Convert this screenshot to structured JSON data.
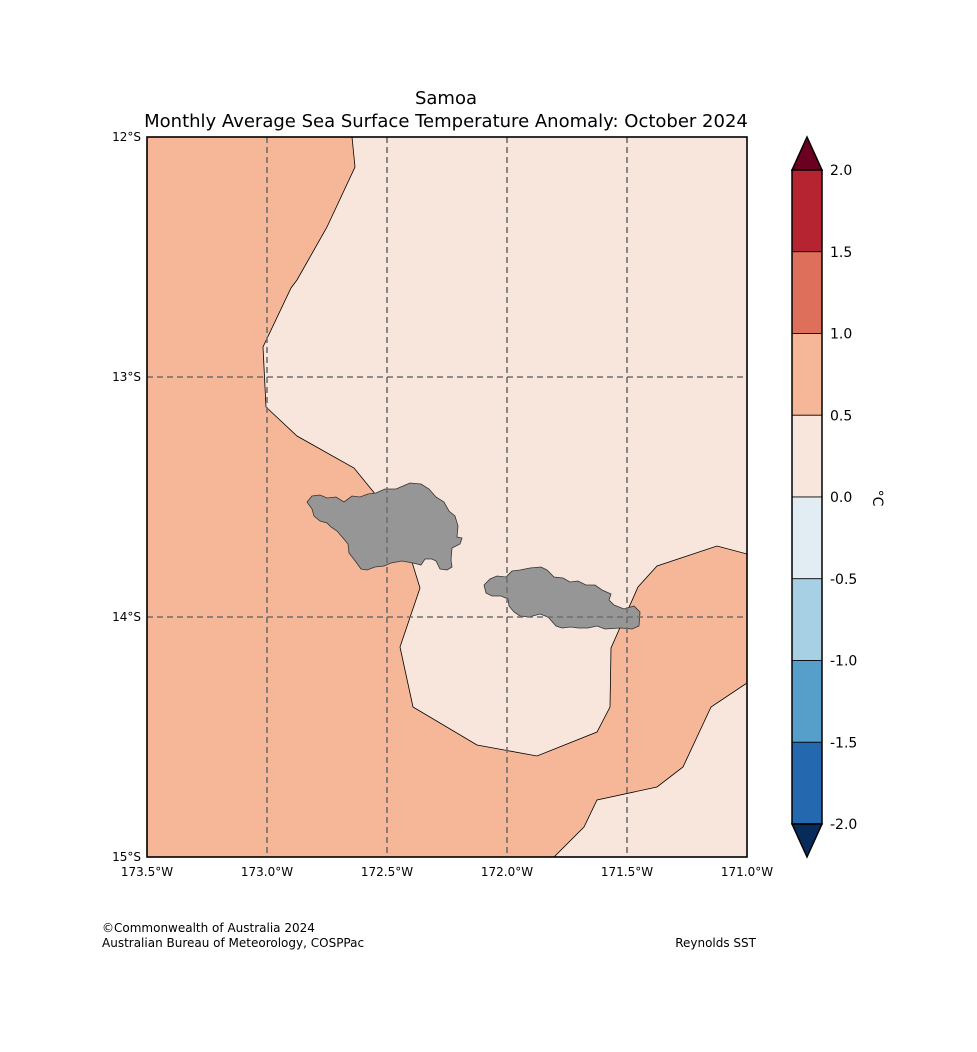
{
  "title": {
    "line1": "Samoa",
    "line2": "Monthly Average Sea Surface Temperature Anomaly: October 2024"
  },
  "map": {
    "lon_range": [
      -173.5,
      -171.0
    ],
    "lat_range": [
      -15.0,
      -12.0
    ],
    "lon_ticks": [
      {
        "value": -173.5,
        "label": "173.5°W"
      },
      {
        "value": -173.0,
        "label": "173.0°W"
      },
      {
        "value": -172.5,
        "label": "172.5°W"
      },
      {
        "value": -172.0,
        "label": "172.0°W"
      },
      {
        "value": -171.5,
        "label": "171.5°W"
      },
      {
        "value": -171.0,
        "label": "171.0°W"
      }
    ],
    "lat_ticks": [
      {
        "value": -12.0,
        "label": "12°S"
      },
      {
        "value": -13.0,
        "label": "13°S"
      },
      {
        "value": -14.0,
        "label": "14°S"
      },
      {
        "value": -15.0,
        "label": "15°S"
      }
    ],
    "gridlines": "dashed",
    "land_color": "#969696",
    "islands": [
      "Savai'i",
      "Upolu"
    ],
    "anomaly_regions": [
      {
        "range": "0.5 to 1.0",
        "color": "#f6b799"
      },
      {
        "range": "0.0 to 0.5",
        "color": "#f8e6dc"
      }
    ]
  },
  "colorbar": {
    "unit": "°C",
    "ticks": [
      "2.0",
      "1.5",
      "1.0",
      "0.5",
      "0.0",
      "-0.5",
      "-1.0",
      "-1.5",
      "-2.0"
    ],
    "bins": [
      {
        "from": 1.5,
        "to": 2.0,
        "color": "#b62331"
      },
      {
        "from": 1.0,
        "to": 1.5,
        "color": "#dd6f5b"
      },
      {
        "from": 0.5,
        "to": 1.0,
        "color": "#f6b799"
      },
      {
        "from": 0.0,
        "to": 0.5,
        "color": "#f8e6dc"
      },
      {
        "from": -0.5,
        "to": 0.0,
        "color": "#e2edf3"
      },
      {
        "from": -1.0,
        "to": -0.5,
        "color": "#a7d0e4"
      },
      {
        "from": -1.5,
        "to": -1.0,
        "color": "#569fcb"
      },
      {
        "from": -2.0,
        "to": -1.5,
        "color": "#2469b0"
      }
    ],
    "over_color": "#6b0020",
    "under_color": "#072c5c"
  },
  "credits": {
    "copyright": "©Commonwealth of Australia 2024",
    "agency": "Australian Bureau of Meteorology, COSPPac",
    "source": "Reynolds SST"
  }
}
